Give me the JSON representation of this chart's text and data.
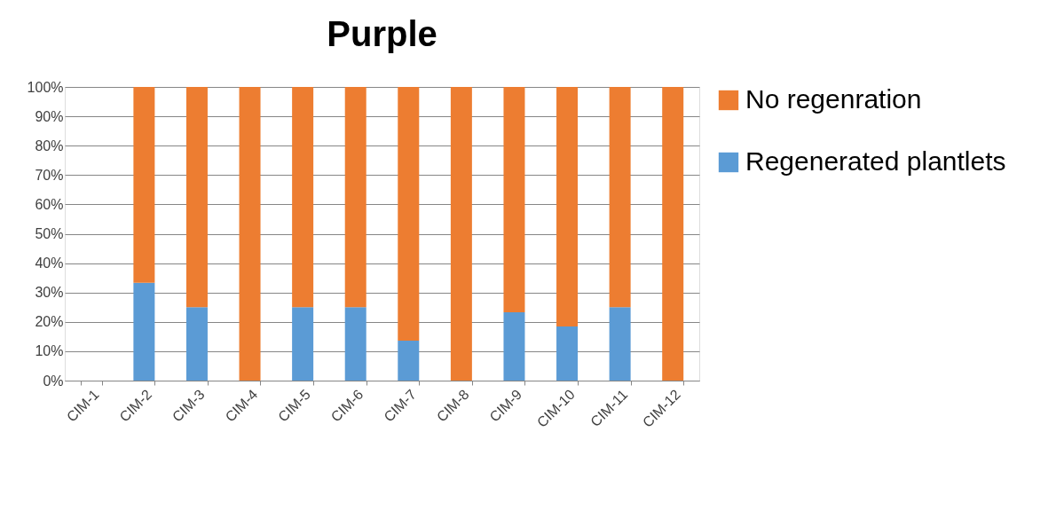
{
  "chart_data": {
    "type": "bar",
    "title": "Purple",
    "stacked": true,
    "categories": [
      "CIM-1",
      "CIM-2",
      "CIM-3",
      "CIM-4",
      "CIM-5",
      "CIM-6",
      "CIM-7",
      "CIM-8",
      "CIM-9",
      "CIM-10",
      "CIM-11",
      "CIM-12"
    ],
    "series": [
      {
        "name": "Regenerated plantlets",
        "color": "#5b9bd5",
        "values": [
          0,
          33.3,
          25,
          0,
          25,
          25,
          13.6,
          0,
          23.3,
          18.4,
          25,
          0
        ]
      },
      {
        "name": "No regenration",
        "color": "#ed7d31",
        "values": [
          0,
          66.7,
          75,
          100,
          75,
          75,
          86.4,
          100,
          76.7,
          81.6,
          75,
          100
        ]
      }
    ],
    "ylim": [
      0,
      100
    ],
    "yticks": [
      {
        "value": 0,
        "label": "0%"
      },
      {
        "value": 10,
        "label": "10%"
      },
      {
        "value": 20,
        "label": "20%"
      },
      {
        "value": 30,
        "label": "30%"
      },
      {
        "value": 40,
        "label": "40%"
      },
      {
        "value": 50,
        "label": "50%"
      },
      {
        "value": 60,
        "label": "60%"
      },
      {
        "value": 70,
        "label": "70%"
      },
      {
        "value": 80,
        "label": "80%"
      },
      {
        "value": 90,
        "label": "90%"
      },
      {
        "value": 100,
        "label": "100%"
      }
    ],
    "grid": "y",
    "legend": "right"
  }
}
